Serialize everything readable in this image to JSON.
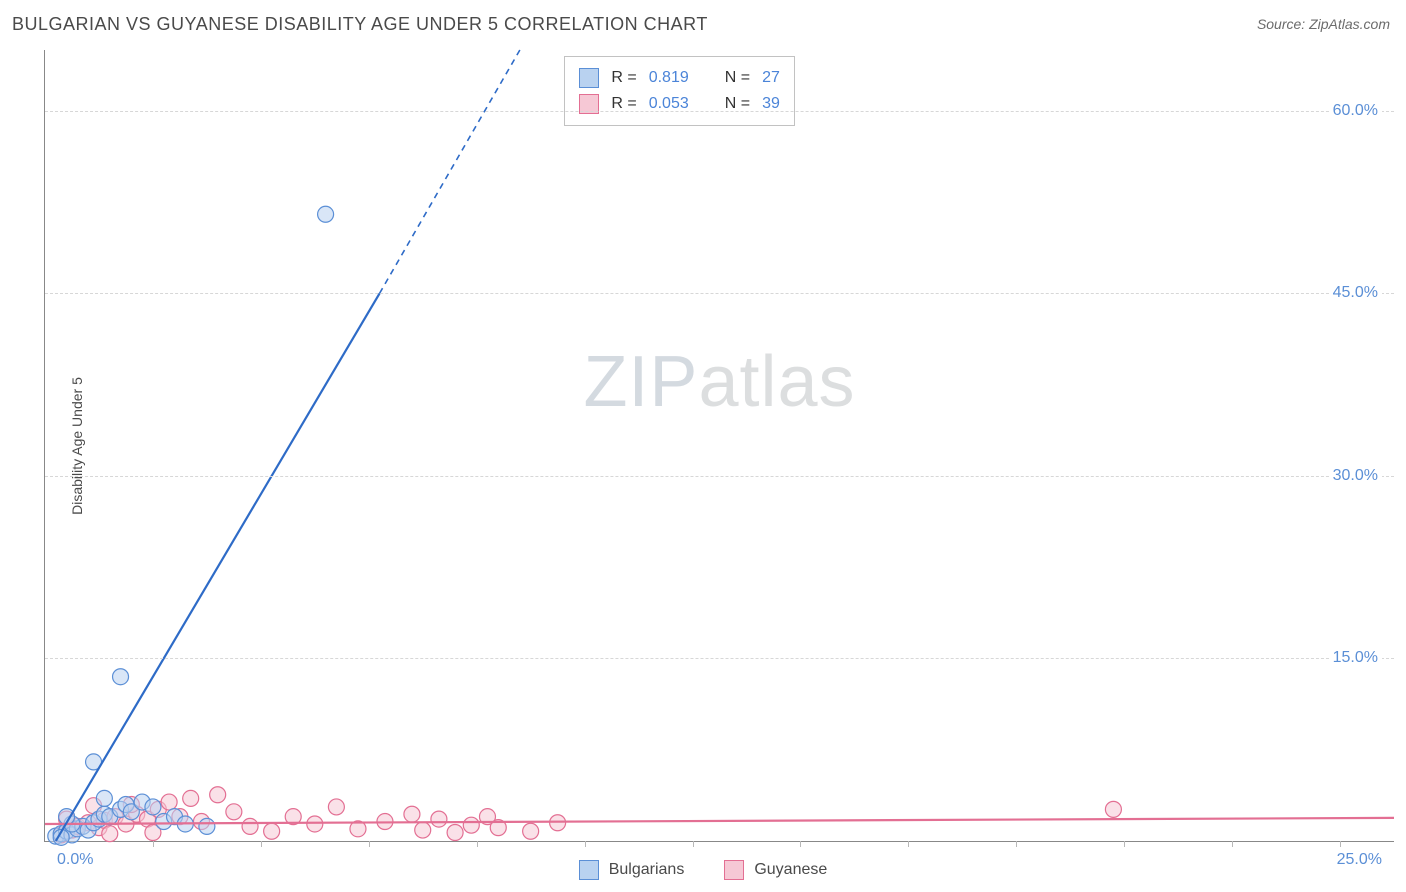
{
  "title": "BULGARIAN VS GUYANESE DISABILITY AGE UNDER 5 CORRELATION CHART",
  "source": "Source: ZipAtlas.com",
  "y_axis_label": "Disability Age Under 5",
  "watermark": {
    "a": "ZIP",
    "b": "atlas"
  },
  "chart": {
    "type": "scatter",
    "background": "#ffffff",
    "grid_color": "#d7d7d7",
    "axis_color": "#888888",
    "tick_label_color": "#5b8fd6",
    "tick_fontsize": 16,
    "xlim": [
      0,
      25
    ],
    "ylim": [
      0,
      65
    ],
    "x_ticks_minor": [
      2,
      4,
      6,
      8,
      10,
      12,
      14,
      16,
      18,
      20,
      22,
      24
    ],
    "x_origin_label": "0.0%",
    "x_max_label": "25.0%",
    "y_ticks": [
      {
        "v": 15,
        "label": "15.0%"
      },
      {
        "v": 30,
        "label": "30.0%"
      },
      {
        "v": 45,
        "label": "45.0%"
      },
      {
        "v": 60,
        "label": "60.0%"
      }
    ],
    "marker_radius": 8,
    "marker_opacity": 0.55
  },
  "series": {
    "bulgarians": {
      "label": "Bulgarians",
      "fill": "#b9d2f0",
      "stroke": "#5b8fd6",
      "R": "0.819",
      "N": "27",
      "trend": {
        "x1": 0.2,
        "y1": 0,
        "x2": 6.2,
        "y2": 45,
        "dash_to_x": 8.8,
        "dash_to_y": 65
      },
      "points": [
        [
          0.2,
          0.4
        ],
        [
          0.3,
          0.6
        ],
        [
          0.4,
          0.8
        ],
        [
          0.5,
          0.5
        ],
        [
          0.6,
          1.0
        ],
        [
          0.7,
          1.2
        ],
        [
          0.8,
          0.9
        ],
        [
          0.9,
          1.5
        ],
        [
          1.0,
          1.8
        ],
        [
          1.1,
          2.2
        ],
        [
          1.2,
          2.0
        ],
        [
          1.4,
          2.6
        ],
        [
          1.5,
          3.0
        ],
        [
          1.6,
          2.4
        ],
        [
          1.8,
          3.2
        ],
        [
          2.0,
          2.8
        ],
        [
          2.2,
          1.6
        ],
        [
          2.4,
          2.0
        ],
        [
          2.6,
          1.4
        ],
        [
          3.0,
          1.2
        ],
        [
          0.9,
          6.5
        ],
        [
          1.4,
          13.5
        ],
        [
          5.2,
          51.5
        ],
        [
          0.3,
          0.3
        ],
        [
          0.5,
          1.4
        ],
        [
          0.4,
          2.0
        ],
        [
          1.1,
          3.5
        ]
      ]
    },
    "guyanese": {
      "label": "Guyanese",
      "fill": "#f6c8d5",
      "stroke": "#e36f93",
      "R": "0.053",
      "N": "39",
      "trend": {
        "x1": 0,
        "y1": 1.4,
        "x2": 25,
        "y2": 1.9
      },
      "points": [
        [
          0.3,
          0.5
        ],
        [
          0.5,
          0.9
        ],
        [
          0.6,
          1.2
        ],
        [
          0.8,
          1.5
        ],
        [
          1.0,
          1.1
        ],
        [
          1.1,
          1.7
        ],
        [
          1.3,
          2.0
        ],
        [
          1.5,
          1.4
        ],
        [
          1.7,
          2.2
        ],
        [
          1.9,
          1.8
        ],
        [
          2.1,
          2.6
        ],
        [
          2.3,
          3.2
        ],
        [
          2.5,
          2.0
        ],
        [
          2.7,
          3.5
        ],
        [
          2.9,
          1.6
        ],
        [
          3.2,
          3.8
        ],
        [
          3.5,
          2.4
        ],
        [
          3.8,
          1.2
        ],
        [
          4.2,
          0.8
        ],
        [
          4.6,
          2.0
        ],
        [
          5.0,
          1.4
        ],
        [
          5.4,
          2.8
        ],
        [
          5.8,
          1.0
        ],
        [
          6.3,
          1.6
        ],
        [
          6.8,
          2.2
        ],
        [
          7.0,
          0.9
        ],
        [
          7.3,
          1.8
        ],
        [
          7.6,
          0.7
        ],
        [
          7.9,
          1.3
        ],
        [
          8.2,
          2.0
        ],
        [
          8.4,
          1.1
        ],
        [
          9.0,
          0.8
        ],
        [
          9.5,
          1.5
        ],
        [
          19.8,
          2.6
        ],
        [
          0.4,
          1.8
        ],
        [
          0.9,
          2.9
        ],
        [
          1.2,
          0.6
        ],
        [
          1.6,
          3.0
        ],
        [
          2.0,
          0.7
        ]
      ]
    }
  },
  "stats_legend": {
    "R_label": "R  =",
    "N_label": "N  ="
  },
  "bottom_legend_order": [
    "bulgarians",
    "guyanese"
  ]
}
